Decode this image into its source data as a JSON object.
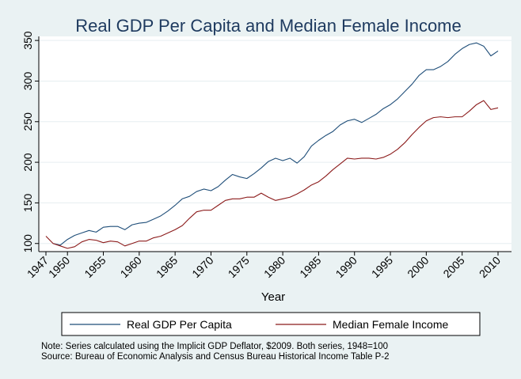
{
  "chart_data": {
    "type": "line",
    "title": "Real GDP Per Capita and Median Female Income",
    "xlabel": "Year",
    "ylabel": "",
    "xlim": [
      1947,
      2010
    ],
    "ylim": [
      90,
      355
    ],
    "x_ticks": [
      "1947",
      "1950",
      "1955",
      "1960",
      "1965",
      "1970",
      "1975",
      "1980",
      "1985",
      "1990",
      "1995",
      "2000",
      "2005",
      "2010"
    ],
    "y_ticks": [
      "100",
      "150",
      "200",
      "250",
      "300",
      "350"
    ],
    "grid": "horizontal",
    "legend_position": "bottom",
    "x": [
      1947,
      1948,
      1949,
      1950,
      1951,
      1952,
      1953,
      1954,
      1955,
      1956,
      1957,
      1958,
      1959,
      1960,
      1961,
      1962,
      1963,
      1964,
      1965,
      1966,
      1967,
      1968,
      1969,
      1970,
      1971,
      1972,
      1973,
      1974,
      1975,
      1976,
      1977,
      1978,
      1979,
      1980,
      1981,
      1982,
      1983,
      1984,
      1985,
      1986,
      1987,
      1988,
      1989,
      1990,
      1991,
      1992,
      1993,
      1994,
      1995,
      1996,
      1997,
      1998,
      1999,
      2000,
      2001,
      2002,
      2003,
      2004,
      2005,
      2006,
      2007,
      2008,
      2009,
      2010
    ],
    "series": [
      {
        "name": "Real GDP Per Capita",
        "color": "#1f4e79",
        "values": [
          null,
          100,
          98,
          105,
          110,
          113,
          116,
          114,
          120,
          121,
          121,
          117,
          123,
          125,
          126,
          130,
          134,
          140,
          147,
          155,
          158,
          164,
          167,
          165,
          170,
          178,
          185,
          182,
          180,
          186,
          193,
          201,
          205,
          202,
          205,
          199,
          207,
          220,
          227,
          233,
          238,
          246,
          251,
          253,
          249,
          254,
          259,
          266,
          271,
          278,
          287,
          296,
          307,
          314,
          314,
          318,
          324,
          333,
          340,
          345,
          347,
          343,
          331,
          337
        ]
      },
      {
        "name": "Median Female Income",
        "color": "#8b1a1a",
        "values": [
          109,
          100,
          97,
          94,
          96,
          102,
          105,
          104,
          101,
          103,
          102,
          97,
          100,
          103,
          103,
          107,
          109,
          113,
          117,
          122,
          131,
          139,
          141,
          141,
          147,
          153,
          155,
          155,
          157,
          157,
          162,
          157,
          153,
          155,
          157,
          161,
          166,
          172,
          176,
          183,
          191,
          198,
          205,
          204,
          205,
          205,
          204,
          206,
          210,
          216,
          224,
          234,
          243,
          251,
          255,
          256,
          255,
          256,
          256,
          263,
          271,
          276,
          265,
          267
        ]
      }
    ],
    "legend": [
      "Real GDP Per Capita",
      "Median Female Income"
    ]
  },
  "notes": {
    "line1": "Note: Series calculated using the Implicit GDP Deflator, $2009. Both series, 1948=100",
    "line2": "Source: Bureau of Economic Analysis and Census Bureau Historical Income Table P-2"
  }
}
